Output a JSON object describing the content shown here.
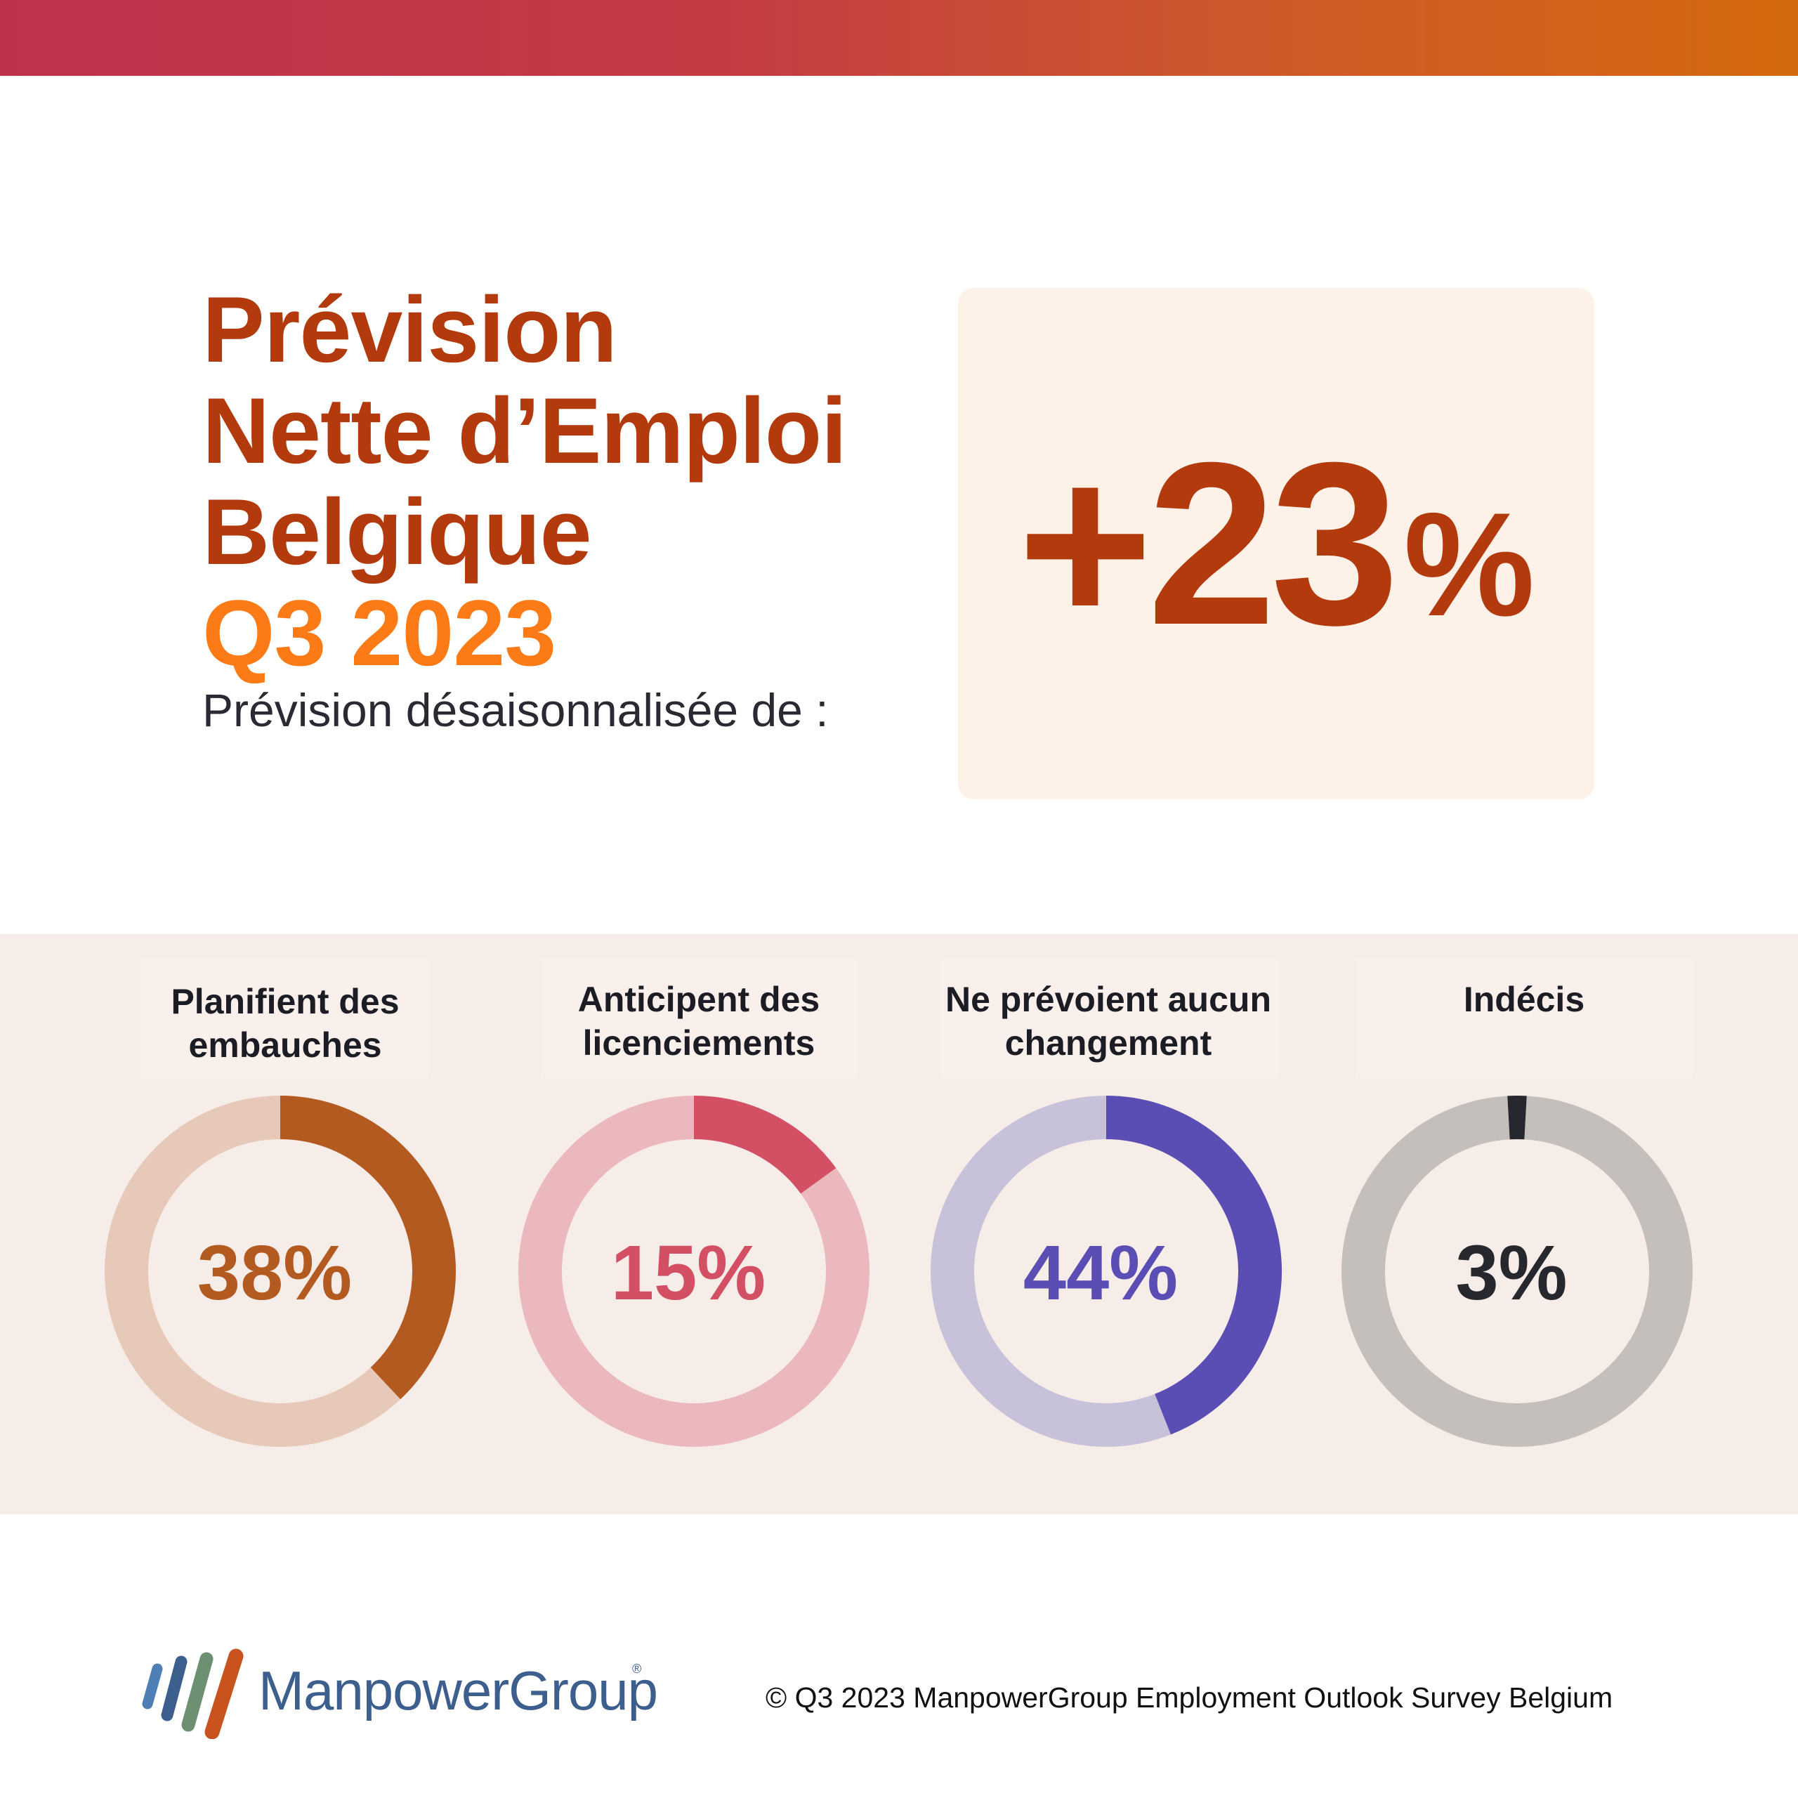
{
  "header": {
    "title_lines": [
      "Prévision",
      "Nette d’Emploi",
      "Belgique"
    ],
    "period": "Q3 2023",
    "subtitle": "Prévision désaisonnalisée de :"
  },
  "forecast": {
    "value": "+23",
    "unit": "%"
  },
  "chart_data": {
    "type": "pie",
    "variant": "donut",
    "series": [
      {
        "name": "Planifient des embauches",
        "label_lines": [
          "Planifient des",
          "embauches"
        ],
        "value": 38,
        "display": "38%",
        "color": "#b35a20",
        "track_color": "#e6c9b8"
      },
      {
        "name": "Anticipent des licenciements",
        "label_lines": [
          "Anticipent des",
          "licenciements"
        ],
        "value": 15,
        "display": "15%",
        "color": "#d24f64",
        "track_color": "#ebb9bd"
      },
      {
        "name": "Ne prévoient aucun changement",
        "label_lines": [
          "Ne prévoient aucun",
          "changement"
        ],
        "value": 44,
        "display": "44%",
        "color": "#5a4eb5",
        "track_color": "#c8c1da"
      },
      {
        "name": "Indécis",
        "label_lines": [
          "Indécis"
        ],
        "value": 3,
        "display": "3%",
        "color": "#26282e",
        "track_color": "#c4bfbb"
      }
    ]
  },
  "footer": {
    "brand": "ManpowerGroup",
    "brand_mark": "®",
    "copyright": "© Q3 2023 ManpowerGroup Employment Outlook Survey Belgium"
  }
}
